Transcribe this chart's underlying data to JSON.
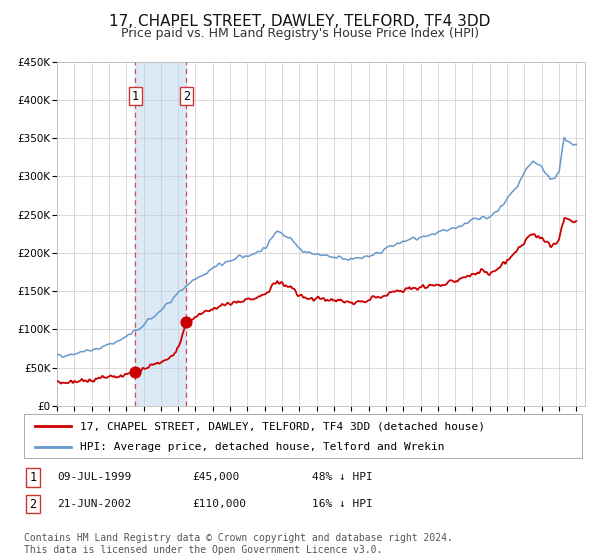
{
  "title": "17, CHAPEL STREET, DAWLEY, TELFORD, TF4 3DD",
  "subtitle": "Price paid vs. HM Land Registry's House Price Index (HPI)",
  "ylim": [
    0,
    450000
  ],
  "xlim_start": 1995.0,
  "xlim_end": 2025.5,
  "yticks": [
    0,
    50000,
    100000,
    150000,
    200000,
    250000,
    300000,
    350000,
    400000,
    450000
  ],
  "ytick_labels": [
    "£0",
    "£50K",
    "£100K",
    "£150K",
    "£200K",
    "£250K",
    "£300K",
    "£350K",
    "£400K",
    "£450K"
  ],
  "xtick_years": [
    1995,
    1996,
    1997,
    1998,
    1999,
    2000,
    2001,
    2002,
    2003,
    2004,
    2005,
    2006,
    2007,
    2008,
    2009,
    2010,
    2011,
    2012,
    2013,
    2014,
    2015,
    2016,
    2017,
    2018,
    2019,
    2020,
    2021,
    2022,
    2023,
    2024,
    2025
  ],
  "background_color": "#ffffff",
  "plot_bg_color": "#ffffff",
  "grid_color": "#cccccc",
  "shade_x1": 1999.52,
  "shade_x2": 2002.47,
  "shade_color": "#dce9f7",
  "vline1_x": 1999.52,
  "vline2_x": 2002.47,
  "vline_color": "#cc3333",
  "sale1_x": 1999.52,
  "sale1_y": 45000,
  "sale2_x": 2002.47,
  "sale2_y": 110000,
  "sale_dot_color": "#cc0000",
  "sale_dot_size": 60,
  "hpi_color": "#6699cc",
  "price_color": "#cc0000",
  "legend_label_price": "17, CHAPEL STREET, DAWLEY, TELFORD, TF4 3DD (detached house)",
  "legend_label_hpi": "HPI: Average price, detached house, Telford and Wrekin",
  "table_row1_num": "1",
  "table_row1_date": "09-JUL-1999",
  "table_row1_price": "£45,000",
  "table_row1_hpi": "48% ↓ HPI",
  "table_row2_num": "2",
  "table_row2_date": "21-JUN-2002",
  "table_row2_price": "£110,000",
  "table_row2_hpi": "16% ↓ HPI",
  "footnote": "Contains HM Land Registry data © Crown copyright and database right 2024.\nThis data is licensed under the Open Government Licence v3.0.",
  "title_fontsize": 11,
  "subtitle_fontsize": 9,
  "tick_fontsize": 7.5,
  "legend_fontsize": 8,
  "table_fontsize": 8,
  "footnote_fontsize": 7
}
